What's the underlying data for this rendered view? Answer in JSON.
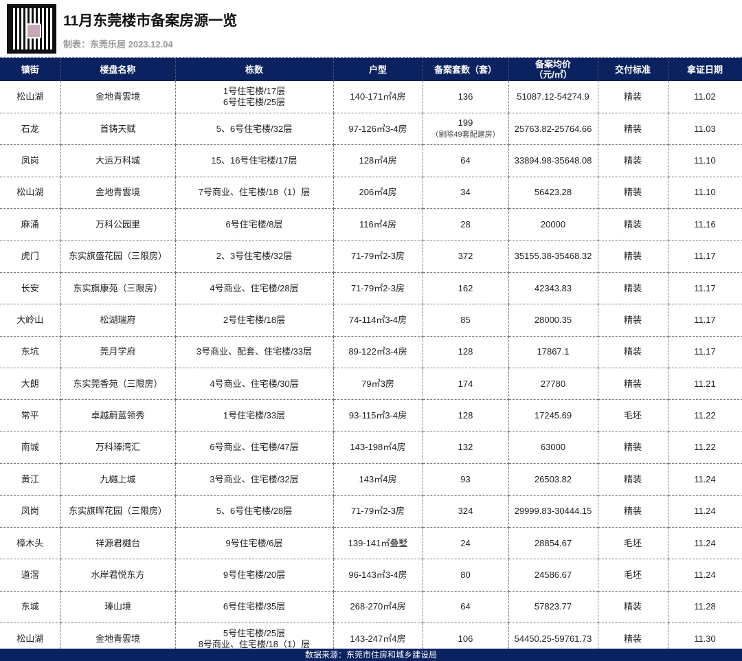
{
  "title": "11月东莞楼市备案房源一览",
  "subtitle": "制表：东莞乐居 2023.12.04",
  "headers": [
    "镇街",
    "楼盘名称",
    "栋数",
    "户型",
    "备案套数（套）",
    "备案均价\n（元/㎡）",
    "交付标准",
    "拿证日期"
  ],
  "rows": [
    [
      "松山湖",
      "金地青雲境",
      "1号住宅楼/17层\n6号住宅楼/25层",
      "140-171㎡4房",
      "136",
      "51087.12-54274.9",
      "精装",
      "11.02"
    ],
    [
      "石龙",
      "首铸天赋",
      "5、6号住宅楼/32层",
      "97-126㎡3-4房",
      "199\n（剔除49套配建房）",
      "25763.82-25764.66",
      "精装",
      "11.03"
    ],
    [
      "凤岗",
      "大运万科城",
      "15、16号住宅楼/17层",
      "128㎡4房",
      "64",
      "33894.98-35648.08",
      "精装",
      "11.10"
    ],
    [
      "松山湖",
      "金地青雲境",
      "7号商业、住宅楼/18（1）层",
      "206㎡4房",
      "34",
      "56423.28",
      "精装",
      "11.10"
    ],
    [
      "麻涌",
      "万科公园里",
      "6号住宅楼/8层",
      "116㎡4房",
      "28",
      "20000",
      "精装",
      "11.16"
    ],
    [
      "虎门",
      "东实旗盛花园（三限房）",
      "2、3号住宅楼/32层",
      "71-79㎡2-3房",
      "372",
      "35155.38-35468.32",
      "精装",
      "11.17"
    ],
    [
      "长安",
      "东实旗康苑（三限房）",
      "4号商业、住宅楼/28层",
      "71-79㎡2-3房",
      "162",
      "42343.83",
      "精装",
      "11.17"
    ],
    [
      "大岭山",
      "松湖瑞府",
      "2号住宅楼/18层",
      "74-114㎡3-4房",
      "85",
      "28000.35",
      "精装",
      "11.17"
    ],
    [
      "东坑",
      "莞月学府",
      "3号商业、配套、住宅楼/33层",
      "89-122㎡3-4房",
      "128",
      "17867.1",
      "精装",
      "11.17"
    ],
    [
      "大朗",
      "东实莞香苑（三限房）",
      "4号商业、住宅楼/30层",
      "79㎡3房",
      "174",
      "27780",
      "精装",
      "11.21"
    ],
    [
      "常平",
      "卓越蔚蓝领秀",
      "1号住宅楼/33层",
      "93-115㎡3-4房",
      "128",
      "17245.69",
      "毛坯",
      "11.22"
    ],
    [
      "南城",
      "万科瑧湾汇",
      "6号商业、住宅楼/47层",
      "143-198㎡4房",
      "132",
      "63000",
      "精装",
      "11.22"
    ],
    [
      "黄江",
      "九樾上城",
      "3号商业、住宅楼/32层",
      "143㎡4房",
      "93",
      "26503.82",
      "精装",
      "11.24"
    ],
    [
      "凤岗",
      "东实旗晖花园（三限房）",
      "5、6号住宅楼/28层",
      "71-79㎡2-3房",
      "324",
      "29999.83-30444.15",
      "精装",
      "11.24"
    ],
    [
      "樟木头",
      "祥源君樾台",
      "9号住宅楼/6层",
      "139-141㎡叠墅",
      "24",
      "28854.67",
      "毛坯",
      "11.24"
    ],
    [
      "道滘",
      "水岸君悦东方",
      "9号住宅楼/20层",
      "96-143㎡3-4房",
      "80",
      "24586.67",
      "毛坯",
      "11.24"
    ],
    [
      "东城",
      "瑧山境",
      "6号住宅楼/35层",
      "268-270㎡4房",
      "64",
      "57823.77",
      "精装",
      "11.28"
    ],
    [
      "松山湖",
      "金地青雲境",
      "5号住宅楼/25层\n8号商业、住宅楼/18（1）层",
      "143-247㎡4房",
      "106",
      "54450.25-59761.73",
      "精装",
      "11.30"
    ]
  ],
  "footer": "数据来源：东莞市住房和城乡建设局",
  "colors": {
    "header_bg": "#0b2260"
  }
}
